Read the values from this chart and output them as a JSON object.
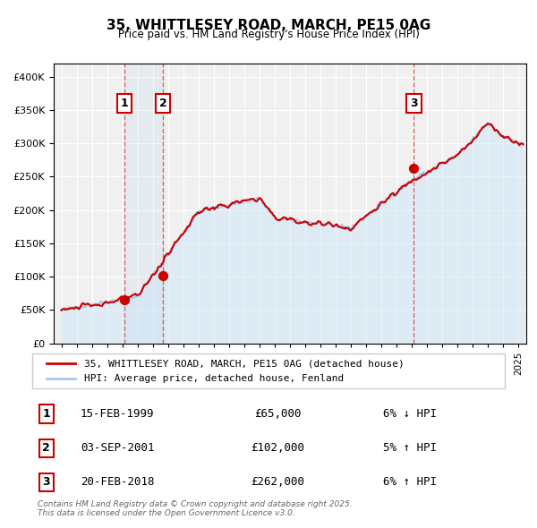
{
  "title": "35, WHITTLESEY ROAD, MARCH, PE15 0AG",
  "subtitle": "Price paid vs. HM Land Registry's House Price Index (HPI)",
  "ylabel": "",
  "background_color": "#ffffff",
  "plot_background_color": "#f0f0f0",
  "grid_color": "#ffffff",
  "ylim": [
    0,
    420000
  ],
  "yticks": [
    0,
    50000,
    100000,
    150000,
    200000,
    250000,
    300000,
    350000,
    400000
  ],
  "ytick_labels": [
    "£0",
    "£50K",
    "£100K",
    "£150K",
    "£200K",
    "£250K",
    "£300K",
    "£350K",
    "£400K"
  ],
  "sale_color": "#cc0000",
  "hpi_color": "#a8c8e8",
  "hpi_fill_color": "#d0e8f8",
  "transaction_line_color": "#dd4444",
  "marker_color": "#cc0000",
  "transaction1": {
    "label": "1",
    "date": "15-FEB-1999",
    "price": 65000,
    "hpi_diff": "6% ↓ HPI",
    "x": 1999.12
  },
  "transaction2": {
    "label": "2",
    "date": "03-SEP-2001",
    "price": 102000,
    "hpi_diff": "5% ↑ HPI",
    "x": 2001.67
  },
  "transaction3": {
    "label": "3",
    "date": "20-FEB-2018",
    "price": 262000,
    "hpi_diff": "6% ↑ HPI",
    "x": 2018.13
  },
  "legend_line1": "35, WHITTLESEY ROAD, MARCH, PE15 0AG (detached house)",
  "legend_line2": "HPI: Average price, detached house, Fenland",
  "footnote": "Contains HM Land Registry data © Crown copyright and database right 2025.\nThis data is licensed under the Open Government Licence v3.0.",
  "xlim_start": 1994.5,
  "xlim_end": 2025.5
}
